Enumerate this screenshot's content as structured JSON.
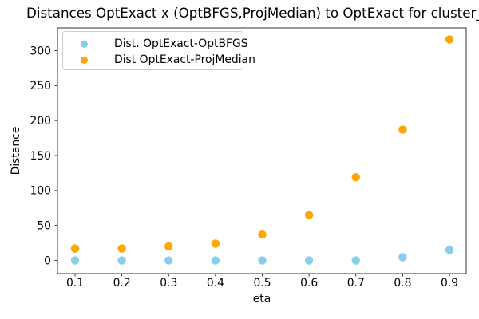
{
  "chart_data": {
    "type": "scatter",
    "title": "Distances OptExact x (OptBFGS,ProjMedian) to OptExact for cluster_",
    "xlabel": "eta",
    "ylabel": "Distance",
    "x": [
      0.1,
      0.2,
      0.3,
      0.4,
      0.5,
      0.6,
      0.7,
      0.8,
      0.9
    ],
    "series": [
      {
        "name": "Dist. OptExact-OptBFGS",
        "color": "#87ceeb",
        "values": [
          0,
          0,
          0,
          0,
          0,
          0,
          0,
          4.5,
          15
        ]
      },
      {
        "name": "Dist OptExact-ProjMedian",
        "color": "#ffa500",
        "values": [
          17,
          17,
          20,
          24,
          37,
          65,
          119,
          187,
          316
        ]
      }
    ],
    "xticks": {
      "values": [
        0.1,
        0.2,
        0.3,
        0.4,
        0.5,
        0.6,
        0.7,
        0.8,
        0.9
      ],
      "labels": [
        "0.1",
        "0.2",
        "0.3",
        "0.4",
        "0.5",
        "0.6",
        "0.7",
        "0.8",
        "0.9"
      ]
    },
    "yticks": {
      "values": [
        0,
        50,
        100,
        150,
        200,
        250,
        300
      ],
      "labels": [
        "0",
        "50",
        "100",
        "150",
        "200",
        "250",
        "300"
      ]
    },
    "xlim": [
      0.0625,
      0.9358
    ],
    "ylim": [
      -18.8,
      332.5
    ],
    "grid": false,
    "legend": {
      "position": "upper left"
    },
    "colors": {
      "background": "#ffffff",
      "text": "#000000",
      "spine": "#000000",
      "legend_border": "#cccccc"
    }
  }
}
